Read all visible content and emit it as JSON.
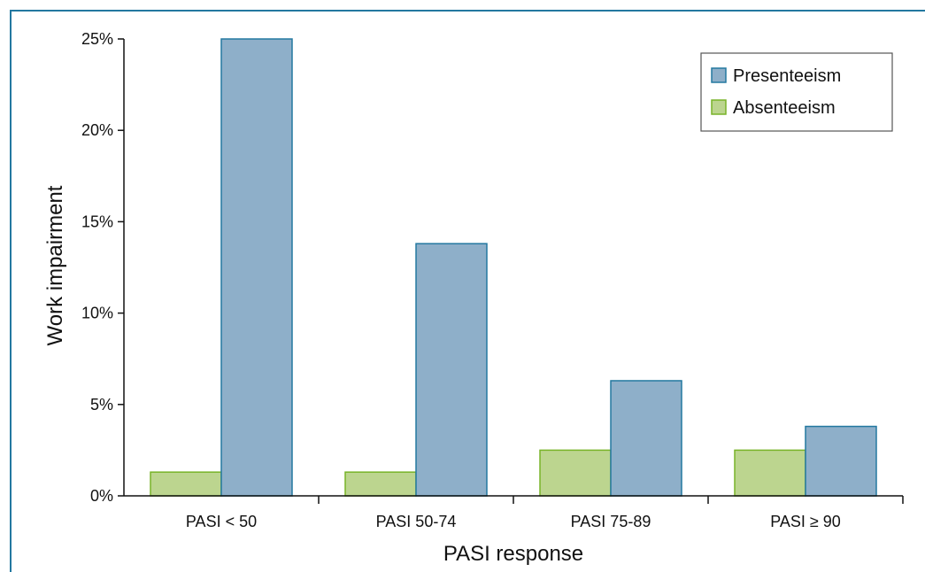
{
  "chart_data": {
    "type": "bar",
    "title": "",
    "xlabel": "PASI response",
    "ylabel": "Work impairment",
    "categories": [
      "PASI < 50",
      "PASI 50-74",
      "PASI 75-89",
      "PASI ≥ 90"
    ],
    "series": [
      {
        "name": "Absenteeism",
        "values": [
          1.3,
          1.3,
          2.5,
          2.5
        ],
        "color": "#bcd58f",
        "stroke": "#78b428"
      },
      {
        "name": "Presenteeism",
        "values": [
          25.0,
          13.8,
          6.3,
          3.8
        ],
        "color": "#8eafc9",
        "stroke": "#2378a0"
      }
    ],
    "ylim": [
      0,
      25
    ],
    "yticks": [
      0,
      5,
      10,
      15,
      20,
      25
    ],
    "ytick_labels": [
      "0%",
      "5%",
      "10%",
      "15%",
      "20%",
      "25%"
    ],
    "grid": false,
    "legend": {
      "placement": "top-right",
      "entries": [
        {
          "label": "Presenteeism",
          "color": "#8eafc9",
          "stroke": "#2378a0"
        },
        {
          "label": "Absenteeism",
          "color": "#bcd58f",
          "stroke": "#78b428"
        }
      ]
    },
    "frame_color": "#2378a0"
  }
}
